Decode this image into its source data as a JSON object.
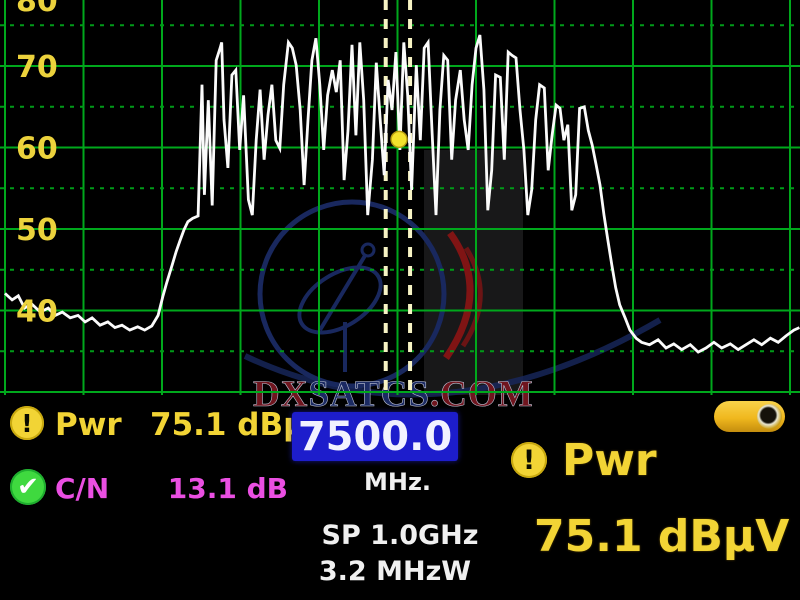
{
  "colors": {
    "grid": "#00a81c",
    "grid_minor": "#009a18",
    "axis_label": "#ecd23c",
    "trace": "#fbfbfb",
    "marker": "#f3e12c",
    "band_line": "#f7f3c4",
    "accent_yellow": "#f2d435",
    "magenta": "#ea4fe2",
    "freq_box_bg": "#1d1dcc",
    "battery": "#f2bf27",
    "watermark_red": "#7d1822",
    "watermark_blue": "#1e2f6e"
  },
  "status_bar": {
    "pwr_icon": "alert-icon",
    "pwr_label": "Pwr",
    "pwr_value": "75.1 dBμV",
    "cn_icon": "check-icon",
    "cn_label": "C/N",
    "cn_value": "13.1 dB",
    "frequency_value": "7500.0",
    "frequency_unit": "MHz.",
    "span_text": "SP 1.0GHz",
    "bandwidth_text": "3.2 MHzW",
    "big_pwr_label": "Pwr",
    "big_pwr_value": "75.1 dBμV"
  },
  "watermark": {
    "full_text": "DXSATCS.COM",
    "segments": [
      {
        "text": "DX",
        "color": "#7d1822"
      },
      {
        "text": "SATCS",
        "color": "#1e2f6e"
      },
      {
        "text": ".COM",
        "color": "#7d1822"
      }
    ]
  },
  "chart_data": {
    "type": "line",
    "title": "",
    "xlabel": "MHz",
    "ylabel": "dBμV",
    "x_range_mhz": [
      7000,
      8012
    ],
    "ylim": [
      30,
      78
    ],
    "y_tick_labels": [
      {
        "db": 80,
        "text": "80"
      },
      {
        "db": 70,
        "text": "70"
      },
      {
        "db": 60,
        "text": "60"
      },
      {
        "db": 50,
        "text": "50"
      },
      {
        "db": 40,
        "text": "40"
      }
    ],
    "y_major_gridlines_db": [
      80,
      70,
      60,
      50,
      40,
      30
    ],
    "y_minor_gridlines_db": [
      75,
      65,
      55,
      45,
      35
    ],
    "x_gridlines_mhz": [
      7000,
      7100,
      7200,
      7300,
      7400,
      7500,
      7600,
      7700,
      7800,
      7900,
      8000
    ],
    "center_frequency_mhz": 7500.0,
    "span_ghz": 1.0,
    "bandwidth_mhzw": 3.2,
    "power_dbuv": 75.1,
    "cn_db": 13.1,
    "band_marker_lines_mhz": [
      7485,
      7516
    ],
    "marker": {
      "freq_mhz": 7502,
      "level_db": 61.0
    },
    "legend": [],
    "grid": true,
    "trace": [
      [
        7000,
        42.1
      ],
      [
        7009,
        41.3
      ],
      [
        7017,
        41.8
      ],
      [
        7025,
        40.3
      ],
      [
        7034,
        40.8
      ],
      [
        7045,
        39.8
      ],
      [
        7055,
        40.3
      ],
      [
        7064,
        39.4
      ],
      [
        7073,
        39.8
      ],
      [
        7083,
        39.1
      ],
      [
        7093,
        39.4
      ],
      [
        7102,
        38.6
      ],
      [
        7111,
        39.1
      ],
      [
        7121,
        38.2
      ],
      [
        7131,
        38.6
      ],
      [
        7140,
        37.9
      ],
      [
        7149,
        38.2
      ],
      [
        7159,
        37.6
      ],
      [
        7169,
        38.0
      ],
      [
        7178,
        37.6
      ],
      [
        7187,
        38.1
      ],
      [
        7195,
        39.4
      ],
      [
        7201,
        41.7
      ],
      [
        7206,
        43.4
      ],
      [
        7213,
        45.6
      ],
      [
        7218,
        47.2
      ],
      [
        7223,
        48.6
      ],
      [
        7228,
        49.9
      ],
      [
        7233,
        50.9
      ],
      [
        7239,
        51.3
      ],
      [
        7246,
        51.6
      ],
      [
        7251,
        67.7
      ],
      [
        7254,
        54.2
      ],
      [
        7259,
        65.8
      ],
      [
        7264,
        52.9
      ],
      [
        7269,
        70.7
      ],
      [
        7274,
        72.2
      ],
      [
        7276,
        72.9
      ],
      [
        7279,
        63.4
      ],
      [
        7284,
        57.5
      ],
      [
        7289,
        68.9
      ],
      [
        7294,
        69.5
      ],
      [
        7299,
        59.7
      ],
      [
        7304,
        66.4
      ],
      [
        7310,
        53.6
      ],
      [
        7315,
        51.7
      ],
      [
        7320,
        60.9
      ],
      [
        7325,
        67.1
      ],
      [
        7330,
        58.5
      ],
      [
        7335,
        64.0
      ],
      [
        7340,
        67.7
      ],
      [
        7345,
        60.9
      ],
      [
        7350,
        59.9
      ],
      [
        7355,
        67.7
      ],
      [
        7361,
        72.9
      ],
      [
        7366,
        72.2
      ],
      [
        7371,
        70.1
      ],
      [
        7376,
        64.6
      ],
      [
        7381,
        55.4
      ],
      [
        7386,
        63.4
      ],
      [
        7391,
        70.7
      ],
      [
        7396,
        73.4
      ],
      [
        7401,
        67.7
      ],
      [
        7406,
        59.7
      ],
      [
        7411,
        66.4
      ],
      [
        7417,
        69.5
      ],
      [
        7422,
        66.8
      ],
      [
        7427,
        70.7
      ],
      [
        7432,
        56.0
      ],
      [
        7437,
        62.1
      ],
      [
        7442,
        72.6
      ],
      [
        7447,
        61.5
      ],
      [
        7452,
        72.9
      ],
      [
        7457,
        65.8
      ],
      [
        7462,
        51.7
      ],
      [
        7468,
        58.5
      ],
      [
        7473,
        70.4
      ],
      [
        7478,
        63.4
      ],
      [
        7483,
        56.6
      ],
      [
        7488,
        68.3
      ],
      [
        7493,
        64.6
      ],
      [
        7498,
        71.7
      ],
      [
        7503,
        59.7
      ],
      [
        7508,
        72.9
      ],
      [
        7513,
        66.4
      ],
      [
        7518,
        54.8
      ],
      [
        7524,
        70.1
      ],
      [
        7529,
        60.9
      ],
      [
        7534,
        72.2
      ],
      [
        7539,
        72.9
      ],
      [
        7544,
        62.1
      ],
      [
        7549,
        51.7
      ],
      [
        7554,
        64.6
      ],
      [
        7559,
        71.3
      ],
      [
        7564,
        70.7
      ],
      [
        7569,
        58.5
      ],
      [
        7574,
        65.8
      ],
      [
        7580,
        69.5
      ],
      [
        7585,
        63.4
      ],
      [
        7590,
        59.7
      ],
      [
        7595,
        67.7
      ],
      [
        7600,
        72.2
      ],
      [
        7605,
        73.8
      ],
      [
        7610,
        67.1
      ],
      [
        7615,
        52.3
      ],
      [
        7620,
        57.2
      ],
      [
        7625,
        68.9
      ],
      [
        7631,
        68.6
      ],
      [
        7636,
        58.5
      ],
      [
        7641,
        71.7
      ],
      [
        7646,
        71.3
      ],
      [
        7651,
        71.0
      ],
      [
        7656,
        64.6
      ],
      [
        7661,
        59.7
      ],
      [
        7666,
        51.7
      ],
      [
        7671,
        54.8
      ],
      [
        7676,
        63.4
      ],
      [
        7681,
        67.7
      ],
      [
        7687,
        67.3
      ],
      [
        7692,
        57.2
      ],
      [
        7697,
        61.5
      ],
      [
        7702,
        65.2
      ],
      [
        7707,
        64.8
      ],
      [
        7712,
        60.9
      ],
      [
        7717,
        62.8
      ],
      [
        7722,
        52.3
      ],
      [
        7727,
        54.2
      ],
      [
        7732,
        64.8
      ],
      [
        7738,
        65.0
      ],
      [
        7743,
        62.1
      ],
      [
        7748,
        60.3
      ],
      [
        7753,
        57.9
      ],
      [
        7758,
        55.4
      ],
      [
        7763,
        51.7
      ],
      [
        7768,
        48.6
      ],
      [
        7773,
        45.6
      ],
      [
        7778,
        42.8
      ],
      [
        7783,
        40.7
      ],
      [
        7790,
        39.1
      ],
      [
        7796,
        37.6
      ],
      [
        7804,
        36.6
      ],
      [
        7811,
        36.1
      ],
      [
        7821,
        35.8
      ],
      [
        7832,
        36.4
      ],
      [
        7842,
        35.4
      ],
      [
        7852,
        35.9
      ],
      [
        7862,
        35.2
      ],
      [
        7873,
        35.8
      ],
      [
        7883,
        34.9
      ],
      [
        7893,
        35.4
      ],
      [
        7903,
        36.1
      ],
      [
        7913,
        35.4
      ],
      [
        7924,
        35.9
      ],
      [
        7934,
        35.2
      ],
      [
        7944,
        35.8
      ],
      [
        7954,
        36.4
      ],
      [
        7964,
        35.8
      ],
      [
        7975,
        36.6
      ],
      [
        7985,
        36.1
      ],
      [
        7995,
        36.9
      ],
      [
        8005,
        37.6
      ],
      [
        8012,
        37.9
      ]
    ]
  }
}
